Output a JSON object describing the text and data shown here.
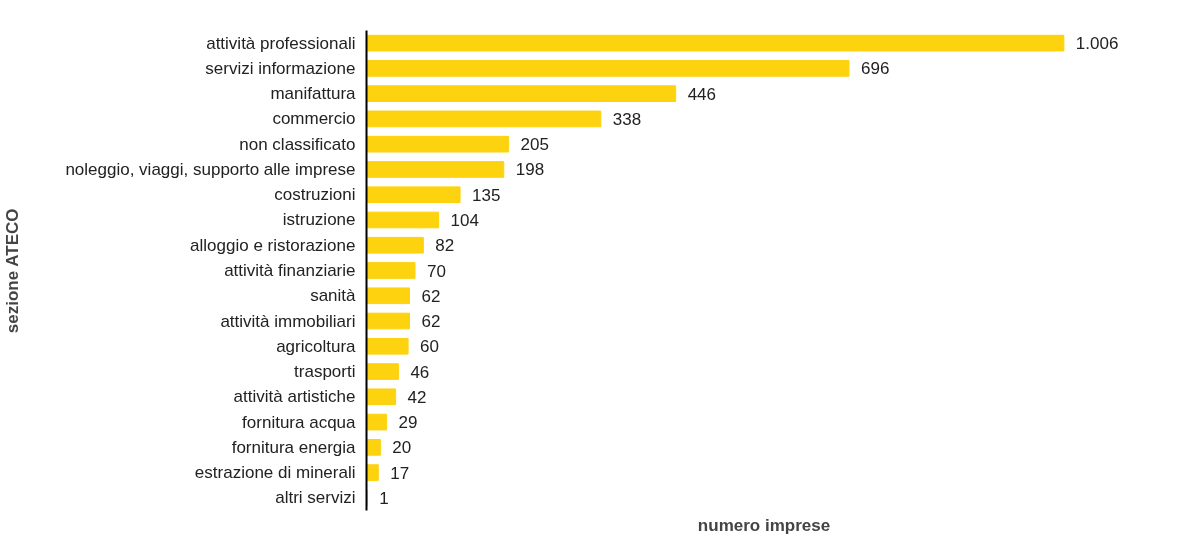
{
  "chart_data": {
    "type": "bar",
    "orientation": "horizontal",
    "ylabel": "sezione ATECO",
    "xlabel": "numero imprese",
    "categories": [
      "attività professionali",
      "servizi informazione",
      "manifattura",
      "commercio",
      "non classificato",
      "noleggio, viaggi, supporto alle imprese",
      "costruzioni",
      "istruzione",
      "alloggio e ristorazione",
      "attività finanziarie",
      "sanità",
      "attività immobiliari",
      "agricoltura",
      "trasporti",
      "attività artistiche",
      "fornitura acqua",
      "fornitura energia",
      "estrazione di minerali",
      "altri servizi"
    ],
    "values": [
      1006,
      696,
      446,
      338,
      205,
      198,
      135,
      104,
      82,
      70,
      62,
      62,
      60,
      46,
      42,
      29,
      20,
      17,
      1
    ],
    "value_labels": [
      "1.006",
      "696",
      "446",
      "338",
      "205",
      "198",
      "135",
      "104",
      "82",
      "70",
      "62",
      "62",
      "60",
      "46",
      "42",
      "29",
      "20",
      "17",
      "1"
    ],
    "color": "#fdd20e",
    "tick_labels": "y",
    "grid": false
  }
}
